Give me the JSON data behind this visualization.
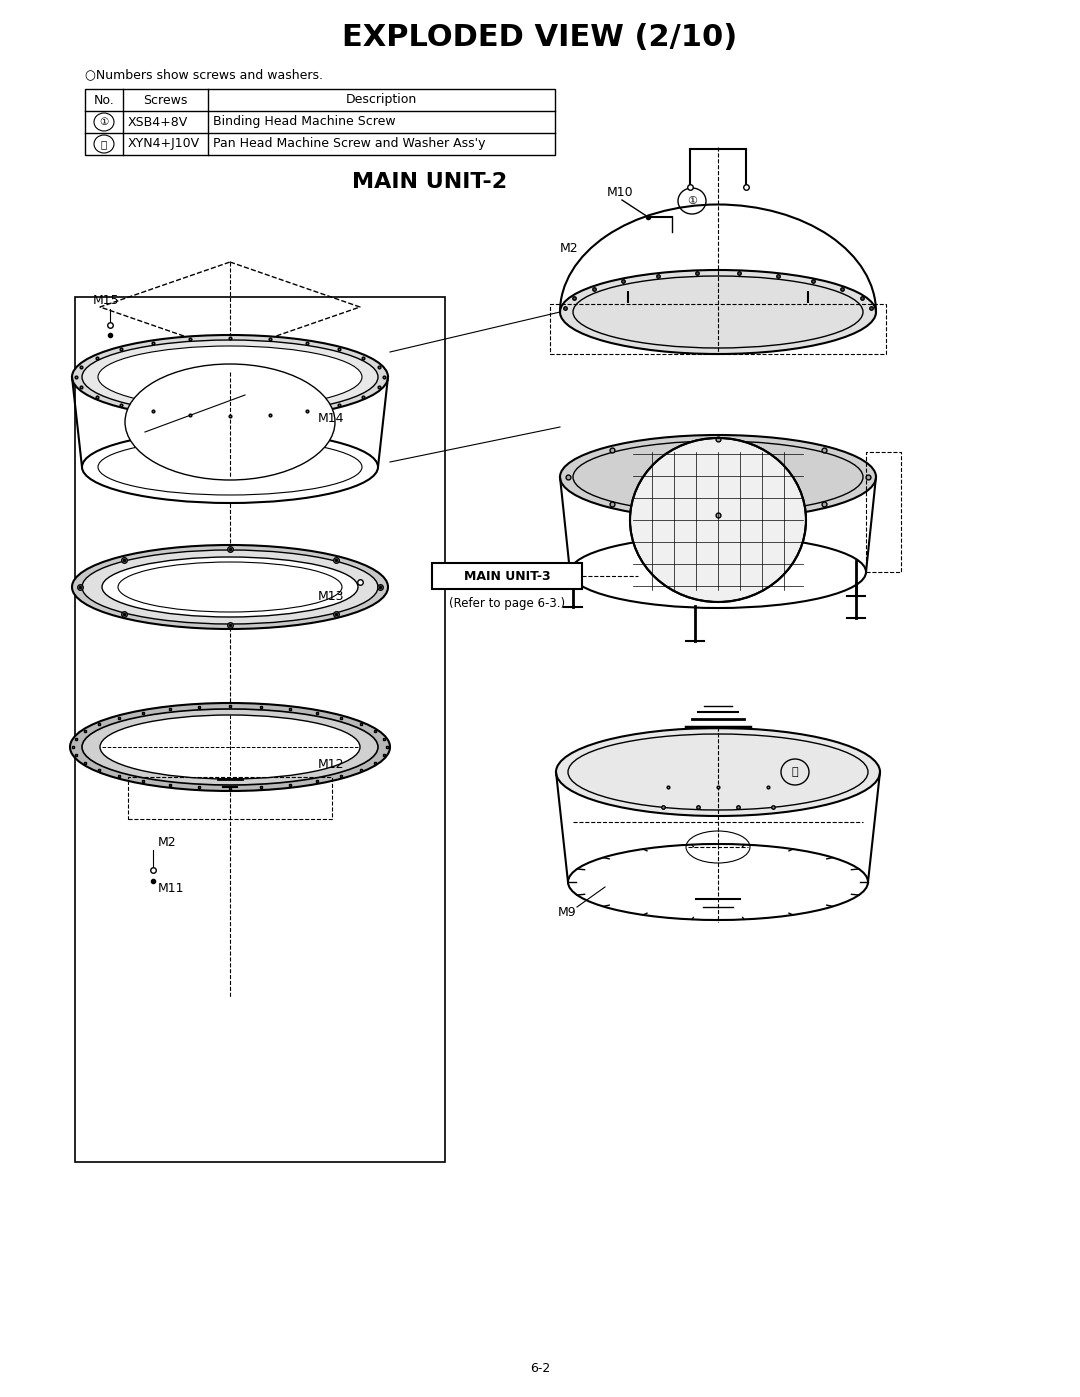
{
  "title": "EXPLODED VIEW (2/10)",
  "subtitle": "MAIN UNIT-2",
  "page_number": "6-2",
  "background_color": "#ffffff",
  "line_color": "#000000",
  "table": {
    "header": [
      "No.",
      "Screws",
      "Description"
    ],
    "rows": [
      [
        "①",
        "XSB4+8V",
        "Binding Head Machine Screw"
      ],
      [
        "⑬",
        "XYN4+J10V",
        "Pan Head Machine Screw and Washer Ass'y"
      ]
    ]
  },
  "circle_note": "○Numbers show screws and washers.",
  "labels": {
    "M2_left": "M2",
    "M2_right": "M2",
    "M9": "M9",
    "M10": "M10",
    "M11": "M11",
    "M12": "M12",
    "M13": "M13",
    "M14": "M14",
    "M15": "M15",
    "main_unit3": "MAIN UNIT-3",
    "refer": "(Refer to page 6-3.)",
    "screw10": "①",
    "screw13": "⑬"
  },
  "font_sizes": {
    "title": 22,
    "subtitle": 14,
    "table_header": 9,
    "table_row": 9,
    "label": 9,
    "page_number": 9,
    "note": 9,
    "main_unit3": 9
  }
}
